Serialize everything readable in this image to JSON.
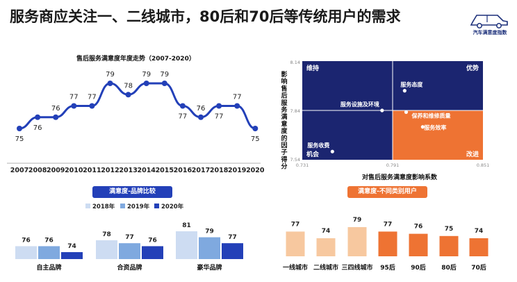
{
  "header": {
    "title": "服务商应关注一、二线城市，80后和70后等传统用户的需求",
    "logo_text": "汽车满意度指数"
  },
  "colors": {
    "navy": "#1b2570",
    "orange": "#ee7333",
    "blue_dark": "#2340b8",
    "blue_mid": "#7fa9df",
    "blue_light": "#cddcf2",
    "orange_light": "#f7c89f"
  },
  "chart_data": [
    {
      "id": "trend",
      "type": "line",
      "title": "售后服务满意度年度走势（2007-2020）",
      "x": [
        "2007",
        "2008",
        "2009",
        "2010",
        "2011",
        "2012",
        "2013",
        "2014",
        "2015",
        "2016",
        "2017",
        "2018",
        "2019",
        "2020"
      ],
      "values": [
        75,
        76,
        76,
        77,
        77,
        79,
        78,
        79,
        79,
        77,
        76,
        77,
        77,
        75
      ],
      "color": "#2340b8"
    },
    {
      "id": "quadrant",
      "type": "scatter",
      "ylabel": "影响售后服务满意度的因子得分",
      "xlabel": "对售后服务满意度影响系数",
      "xlim": [
        0.731,
        0.851
      ],
      "ylim": [
        7.54,
        8.14
      ],
      "x_ticks": [
        "0.731",
        "0.791",
        "0.851"
      ],
      "y_ticks": [
        "8.14",
        "7.84",
        "7.54"
      ],
      "x_split": 0.791,
      "y_split": 7.84,
      "quadrants": {
        "top_left": "维持",
        "top_right": "优势",
        "bottom_left": "机会",
        "bottom_right": "改进"
      },
      "points": [
        {
          "label": "服务设施及环境",
          "x": 0.784,
          "y": 7.84
        },
        {
          "label": "服务态度",
          "x": 0.799,
          "y": 7.96
        },
        {
          "label": "保养和维修质量",
          "x": 0.8,
          "y": 7.83
        },
        {
          "label": "服务效率",
          "x": 0.811,
          "y": 7.74
        },
        {
          "label": "服务收费",
          "x": 0.751,
          "y": 7.59
        }
      ]
    },
    {
      "id": "brand",
      "type": "bar",
      "title": "满意度-品牌比较",
      "categories": [
        "自主品牌",
        "合资品牌",
        "豪华品牌"
      ],
      "series": [
        {
          "name": "2018年",
          "values": [
            76,
            78,
            81
          ],
          "color": "#cddcf2"
        },
        {
          "name": "2019年",
          "values": [
            76,
            77,
            79
          ],
          "color": "#7fa9df"
        },
        {
          "name": "2020年",
          "values": [
            74,
            76,
            77
          ],
          "color": "#2340b8"
        }
      ],
      "legend": "top"
    },
    {
      "id": "users",
      "type": "bar",
      "title": "满意度-不同类别用户",
      "categories": [
        "一线城市",
        "二线城市",
        "三四线城市",
        "95后",
        "90后",
        "80后",
        "70后"
      ],
      "values": [
        77,
        74,
        79,
        77,
        76,
        75,
        74
      ],
      "colors": [
        "#f7c89f",
        "#f7c89f",
        "#f7c89f",
        "#ee7333",
        "#ee7333",
        "#ee7333",
        "#ee7333"
      ]
    }
  ]
}
